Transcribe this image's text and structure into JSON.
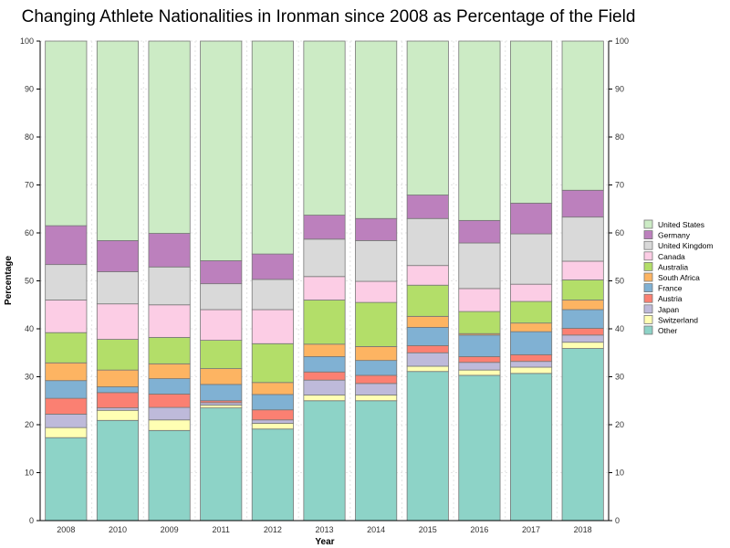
{
  "chart_data": {
    "type": "bar",
    "stacked": true,
    "title": "Changing Athlete Nationalities in Ironman since 2008 as Percentage of the Field",
    "xlabel": "Year",
    "ylabel": "Percentage",
    "ylim": [
      0,
      100
    ],
    "yticks": [
      0,
      10,
      20,
      30,
      40,
      50,
      60,
      70,
      80,
      90,
      100
    ],
    "grid": true,
    "legend_position": "right",
    "categories": [
      "2008",
      "2010",
      "2009",
      "2011",
      "2012",
      "2013",
      "2014",
      "2015",
      "2016",
      "2017",
      "2018"
    ],
    "series": [
      {
        "name": "Other",
        "color": "#8dd3c7",
        "values": [
          17.3,
          20.9,
          18.8,
          23.5,
          19.1,
          25.0,
          25.0,
          31.1,
          30.3,
          30.7,
          35.9
        ]
      },
      {
        "name": "Switzerland",
        "color": "#ffffb3",
        "values": [
          2.1,
          2.1,
          2.2,
          0.6,
          1.2,
          1.2,
          1.2,
          1.1,
          1.1,
          1.3,
          1.3
        ]
      },
      {
        "name": "Japan",
        "color": "#bebada",
        "values": [
          2.8,
          0.5,
          2.6,
          0.5,
          0.7,
          3.1,
          2.4,
          2.8,
          1.6,
          1.2,
          1.5
        ]
      },
      {
        "name": "Austria",
        "color": "#fb8072",
        "values": [
          3.3,
          3.2,
          2.8,
          0.4,
          2.1,
          1.7,
          1.7,
          1.5,
          1.2,
          1.4,
          1.4
        ]
      },
      {
        "name": "France",
        "color": "#80b1d3",
        "values": [
          3.7,
          1.2,
          3.2,
          3.4,
          3.2,
          3.2,
          3.1,
          3.8,
          4.5,
          4.8,
          3.9
        ]
      },
      {
        "name": "South Africa",
        "color": "#fdb462",
        "values": [
          3.7,
          3.5,
          3.1,
          3.3,
          2.5,
          2.6,
          2.9,
          2.3,
          0.3,
          1.8,
          2.0
        ]
      },
      {
        "name": "Australia",
        "color": "#b3de69",
        "values": [
          6.3,
          6.4,
          5.5,
          5.9,
          8.1,
          9.2,
          9.2,
          6.5,
          4.6,
          4.5,
          4.2
        ]
      },
      {
        "name": "Canada",
        "color": "#fccde5",
        "values": [
          6.8,
          7.4,
          6.8,
          6.4,
          7.1,
          4.9,
          4.4,
          4.1,
          4.8,
          3.6,
          3.9
        ]
      },
      {
        "name": "United Kingdom",
        "color": "#d9d9d9",
        "values": [
          7.4,
          6.7,
          7.9,
          5.4,
          6.3,
          7.8,
          8.5,
          9.8,
          9.5,
          10.5,
          9.2
        ]
      },
      {
        "name": "Germany",
        "color": "#bc80bd",
        "values": [
          8.1,
          6.5,
          7.0,
          4.8,
          5.3,
          5.0,
          4.6,
          4.9,
          4.7,
          6.4,
          5.6
        ]
      },
      {
        "name": "United States",
        "color": "#ccebc5",
        "values": [
          38.5,
          41.6,
          40.1,
          45.8,
          44.4,
          36.3,
          37.0,
          32.1,
          37.4,
          33.8,
          31.1
        ]
      }
    ]
  }
}
